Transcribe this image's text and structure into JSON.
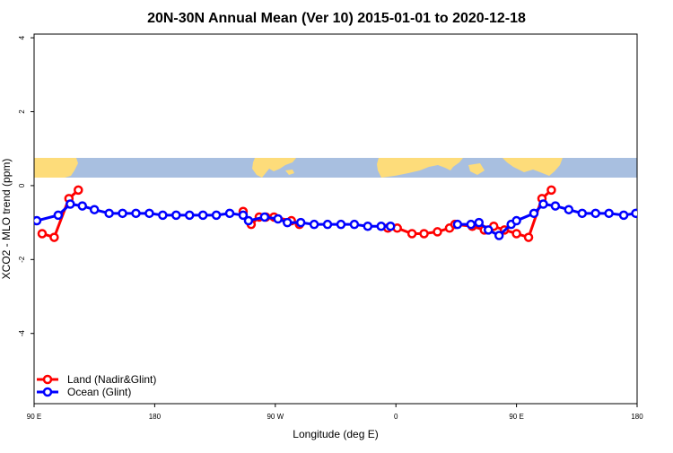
{
  "chart_data": {
    "type": "line",
    "title": "20N-30N Annual Mean (Ver 10)   2015-01-01 to 2020-12-18",
    "xlabel": "Longitude (deg E)",
    "ylabel": "XCO2 - MLO trend (ppm)",
    "xlim": [
      90,
      540
    ],
    "ylim": [
      -5.9,
      4.1
    ],
    "x_ticks": [
      {
        "value": 90,
        "label": "90 E"
      },
      {
        "value": 180,
        "label": "180"
      },
      {
        "value": 270,
        "label": "90 W"
      },
      {
        "value": 360,
        "label": "0"
      },
      {
        "value": 450,
        "label": "90 E"
      },
      {
        "value": 540,
        "label": "180"
      }
    ],
    "y_ticks": [
      {
        "value": 4,
        "label": "4"
      },
      {
        "value": 2,
        "label": "2"
      },
      {
        "value": 0,
        "label": "0"
      },
      {
        "value": -2,
        "label": "-2"
      },
      {
        "value": -4,
        "label": "-4"
      }
    ],
    "legend_position": "bottom-left",
    "background_map": "world map band (land yellow, ocean blue)",
    "colors": {
      "land": "#fddc7a",
      "ocean": "#a8bfe0"
    },
    "series": [
      {
        "name": "Land (Nadir&Glint)",
        "color": "#ff0000",
        "segments": [
          [
            [
              96,
              -1.3
            ],
            [
              105,
              -1.4
            ],
            [
              116,
              -0.35
            ],
            [
              123,
              -0.12
            ]
          ],
          [
            [
              246,
              -0.7
            ],
            [
              252,
              -1.05
            ],
            [
              258,
              -0.85
            ],
            [
              263,
              -0.85
            ],
            [
              269,
              -0.85
            ],
            [
              282,
              -0.95
            ],
            [
              288,
              -1.05
            ]
          ],
          [
            [
              354,
              -1.15
            ],
            [
              361,
              -1.15
            ],
            [
              372,
              -1.3
            ],
            [
              381,
              -1.3
            ],
            [
              391,
              -1.25
            ],
            [
              400,
              -1.15
            ]
          ],
          [
            [
              404,
              -1.05
            ],
            [
              417,
              -1.1
            ],
            [
              426,
              -1.2
            ],
            [
              433,
              -1.1
            ],
            [
              441,
              -1.2
            ],
            [
              450,
              -1.3
            ],
            [
              459,
              -1.4
            ],
            [
              469,
              -0.35
            ],
            [
              476,
              -0.12
            ]
          ]
        ]
      },
      {
        "name": "Ocean (Glint)",
        "color": "#0000ff",
        "segments": [
          [
            [
              92,
              -0.95
            ],
            [
              108,
              -0.8
            ],
            [
              117,
              -0.5
            ],
            [
              126,
              -0.55
            ],
            [
              135,
              -0.65
            ],
            [
              146,
              -0.75
            ],
            [
              156,
              -0.75
            ],
            [
              166,
              -0.75
            ],
            [
              176,
              -0.75
            ],
            [
              186,
              -0.8
            ],
            [
              196,
              -0.8
            ],
            [
              206,
              -0.8
            ],
            [
              216,
              -0.8
            ],
            [
              226,
              -0.8
            ],
            [
              236,
              -0.75
            ],
            [
              246,
              -0.8
            ],
            [
              250,
              -0.95
            ],
            [
              262,
              -0.85
            ],
            [
              272,
              -0.9
            ],
            [
              279,
              -1.0
            ],
            [
              289,
              -1.0
            ],
            [
              299,
              -1.05
            ],
            [
              309,
              -1.05
            ],
            [
              319,
              -1.05
            ],
            [
              329,
              -1.05
            ],
            [
              339,
              -1.1
            ],
            [
              349,
              -1.1
            ],
            [
              356,
              -1.1
            ]
          ],
          [
            [
              406,
              -1.05
            ],
            [
              416,
              -1.05
            ],
            [
              422,
              -1.0
            ],
            [
              429,
              -1.2
            ],
            [
              437,
              -1.35
            ],
            [
              446,
              -1.05
            ],
            [
              450,
              -0.95
            ],
            [
              463,
              -0.75
            ],
            [
              470,
              -0.5
            ],
            [
              479,
              -0.55
            ],
            [
              489,
              -0.65
            ],
            [
              499,
              -0.75
            ],
            [
              509,
              -0.75
            ],
            [
              519,
              -0.75
            ],
            [
              530,
              -0.8
            ],
            [
              539,
              -0.75
            ]
          ]
        ]
      }
    ]
  }
}
